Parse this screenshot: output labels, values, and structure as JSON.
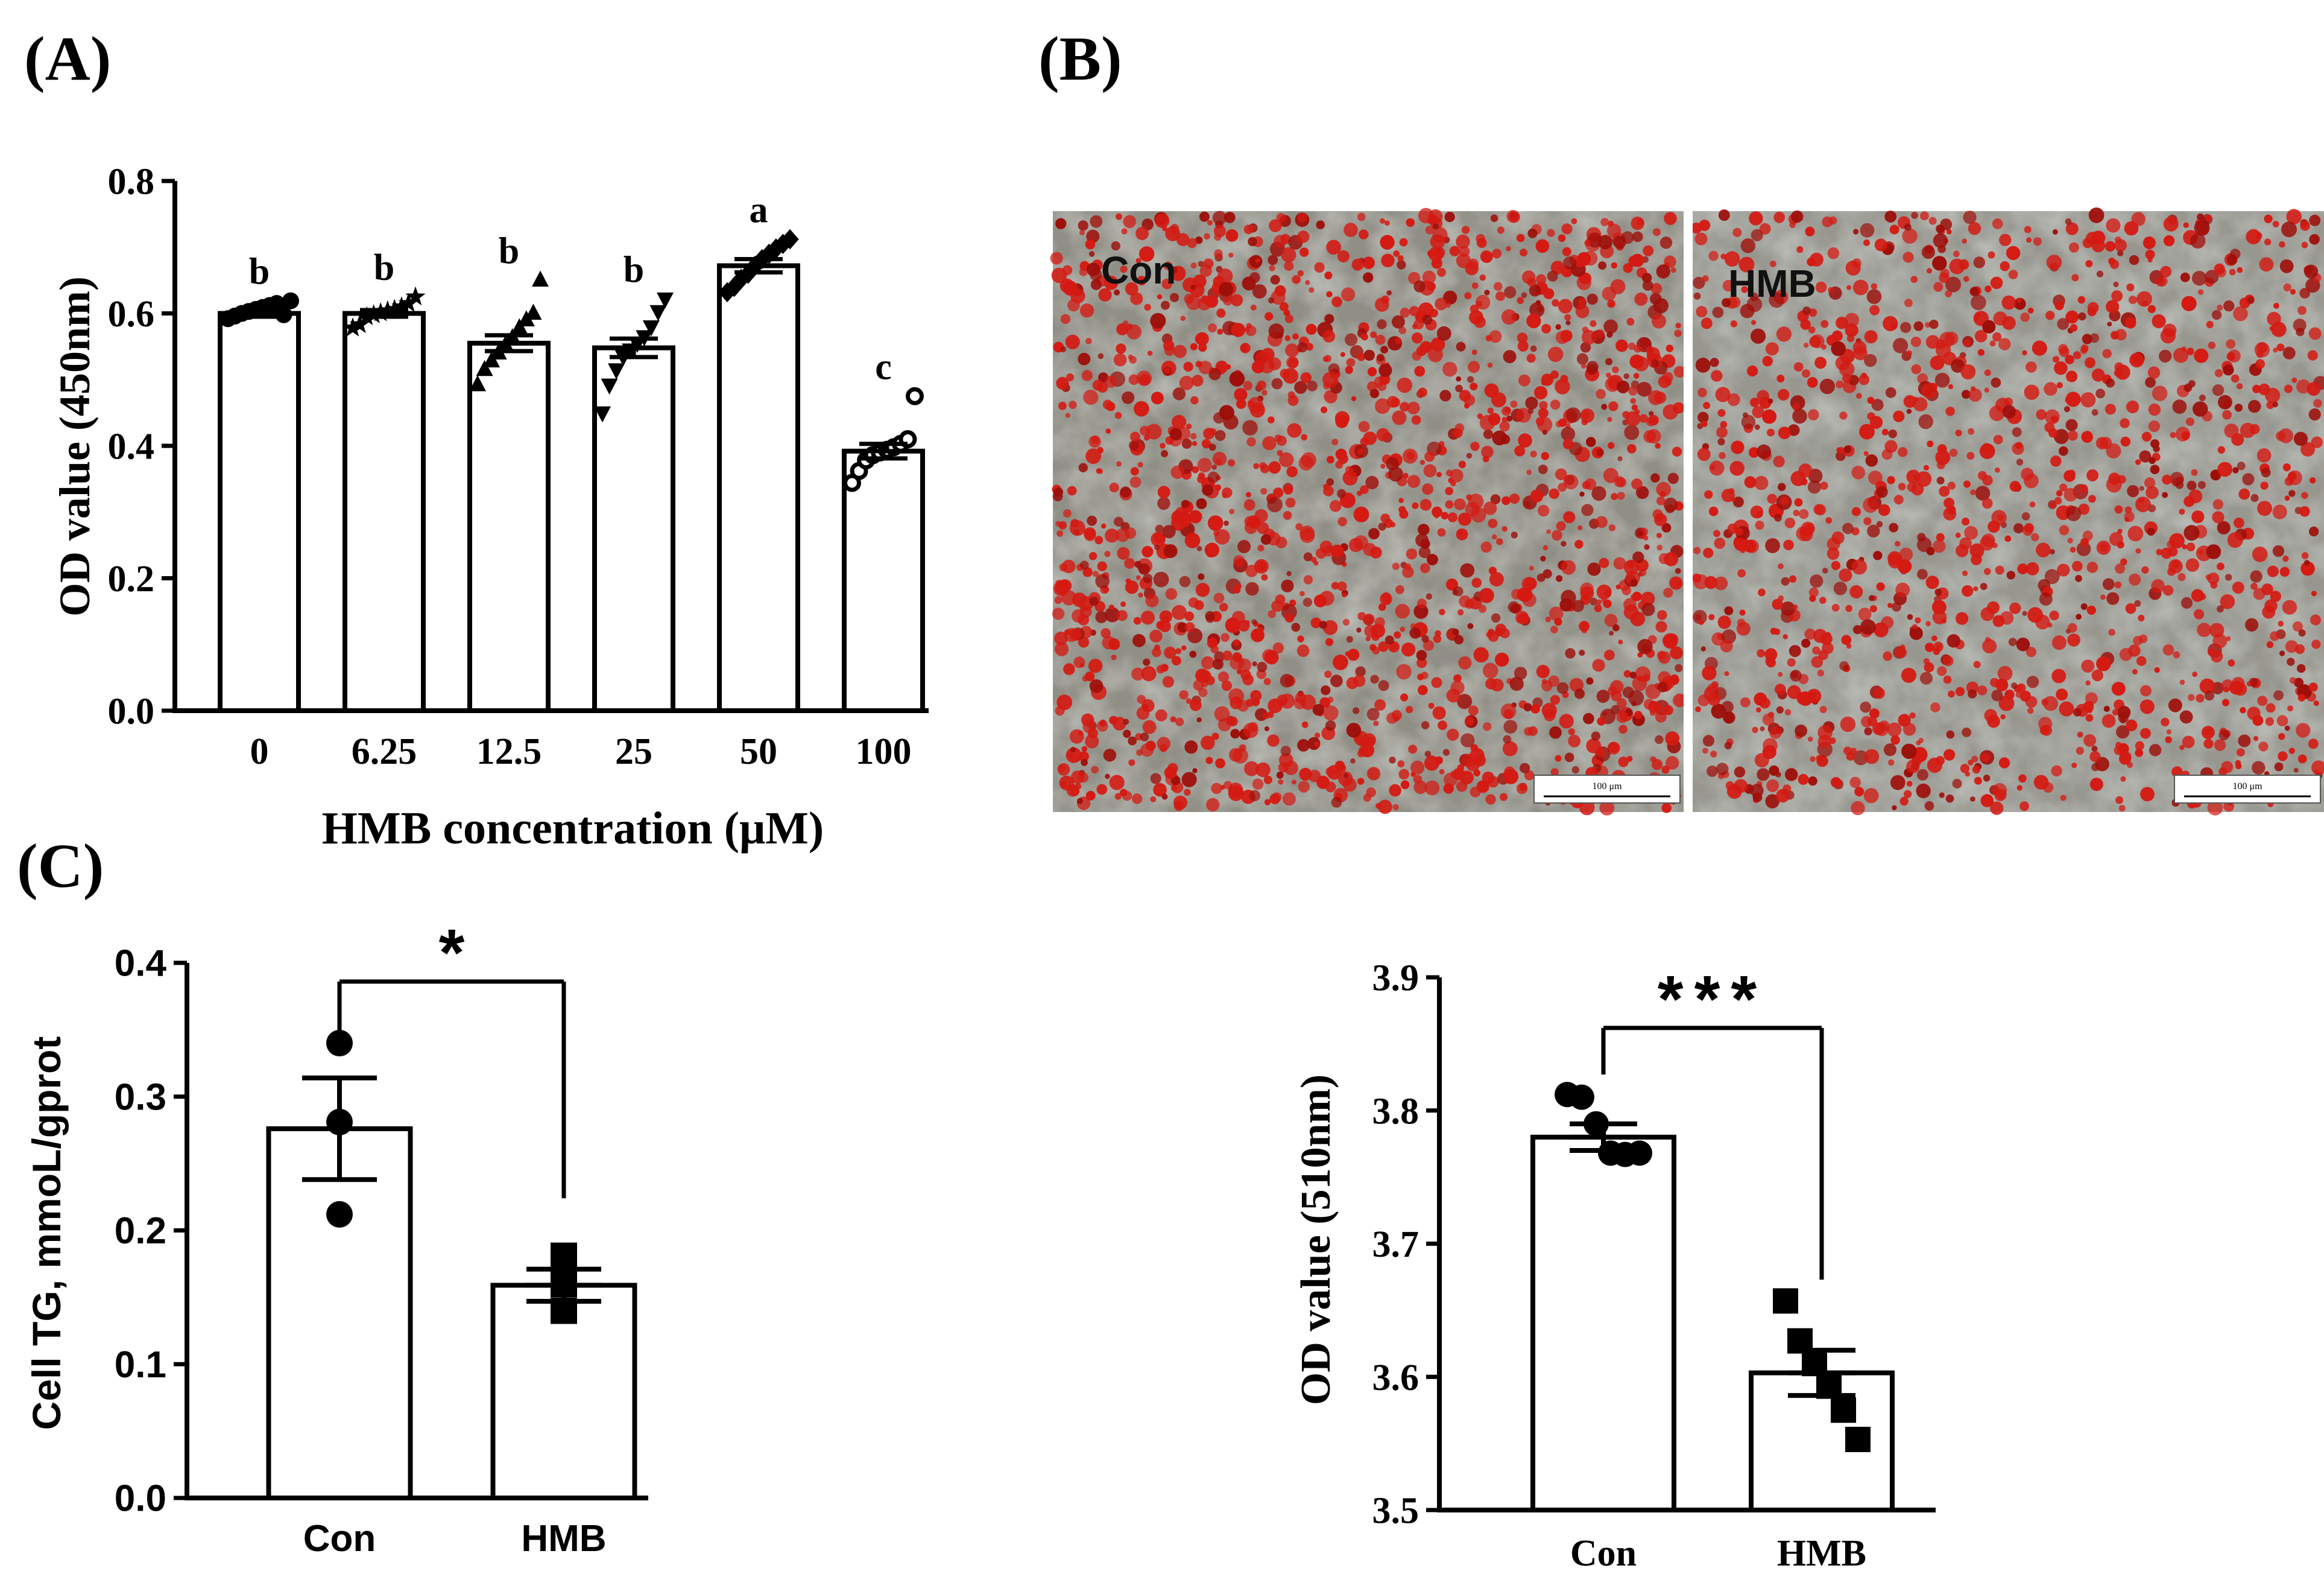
{
  "panels": {
    "a": "(A)",
    "b": "(B)",
    "c": "(C)"
  },
  "micrograph": {
    "left_label": "Con",
    "right_label": "HMB",
    "scale_label": "100 μm",
    "colors": {
      "background": "#8f8f86",
      "stain": "#d41a12",
      "dark_stain": "#9e0f0a"
    }
  },
  "chart_data": [
    {
      "id": "A",
      "type": "bar",
      "title": "",
      "xlabel": "HMB concentration (μM)",
      "ylabel": "OD value (450nm)",
      "ylim": [
        0.0,
        0.8
      ],
      "yticks": [
        "0.0",
        "0.2",
        "0.4",
        "0.6",
        "0.8"
      ],
      "tick_values": [
        0.0,
        0.2,
        0.4,
        0.6,
        0.8
      ],
      "categories": [
        "0",
        "6.25",
        "12.5",
        "25",
        "50",
        "100"
      ],
      "values": [
        0.6,
        0.6,
        0.555,
        0.548,
        0.672,
        0.392
      ],
      "sem": [
        0.005,
        0.005,
        0.012,
        0.014,
        0.01,
        0.011
      ],
      "letters": [
        "b",
        "b",
        "b",
        "b",
        "a",
        "c"
      ],
      "markers": [
        "circle",
        "star",
        "triangle-up",
        "triangle-down",
        "diamond",
        "circle-open"
      ],
      "points": [
        [
          0.592,
          0.596,
          0.6,
          0.603,
          0.606,
          0.609,
          0.612,
          0.615,
          0.598,
          0.619
        ],
        [
          0.578,
          0.583,
          0.595,
          0.598,
          0.601,
          0.604,
          0.606,
          0.61,
          0.615,
          0.625
        ],
        [
          0.492,
          0.515,
          0.528,
          0.54,
          0.552,
          0.563,
          0.578,
          0.59,
          0.6,
          0.65
        ],
        [
          0.45,
          0.492,
          0.515,
          0.535,
          0.545,
          0.555,
          0.565,
          0.58,
          0.603,
          0.622
        ],
        [
          0.632,
          0.64,
          0.652,
          0.66,
          0.672,
          0.682,
          0.69,
          0.698,
          0.705,
          0.712
        ],
        [
          0.344,
          0.362,
          0.378,
          0.386,
          0.39,
          0.394,
          0.398,
          0.403,
          0.41,
          0.475
        ]
      ]
    },
    {
      "id": "C",
      "type": "bar",
      "title": "",
      "xlabel": "",
      "ylabel": "Cell TG, mmoL/gprot",
      "ylim": [
        0.0,
        0.4
      ],
      "yticks": [
        "0.0",
        "0.1",
        "0.2",
        "0.3",
        "0.4"
      ],
      "tick_values": [
        0.0,
        0.1,
        0.2,
        0.3,
        0.4
      ],
      "categories": [
        "Con",
        "HMB"
      ],
      "values": [
        0.276,
        0.159
      ],
      "sem": [
        0.038,
        0.012
      ],
      "markers": [
        "circle",
        "square"
      ],
      "points": [
        [
          0.34,
          0.281,
          0.212
        ],
        [
          0.181,
          0.16,
          0.14
        ]
      ],
      "significance": "*"
    },
    {
      "id": "B2",
      "type": "bar",
      "title": "",
      "xlabel": "",
      "ylabel": "OD value (510nm)",
      "ylim": [
        3.5,
        3.9
      ],
      "yticks": [
        "3.5",
        "3.6",
        "3.7",
        "3.8",
        "3.9"
      ],
      "tick_values": [
        3.5,
        3.6,
        3.7,
        3.8,
        3.9
      ],
      "categories": [
        "Con",
        "HMB"
      ],
      "values": [
        3.78,
        3.603
      ],
      "sem": [
        0.01,
        0.017
      ],
      "markers": [
        "circle",
        "square"
      ],
      "points": [
        [
          3.812,
          3.81,
          3.79,
          3.768,
          3.767,
          3.768
        ],
        [
          3.657,
          3.627,
          3.61,
          3.593,
          3.575,
          3.553
        ]
      ],
      "significance": "***"
    }
  ]
}
